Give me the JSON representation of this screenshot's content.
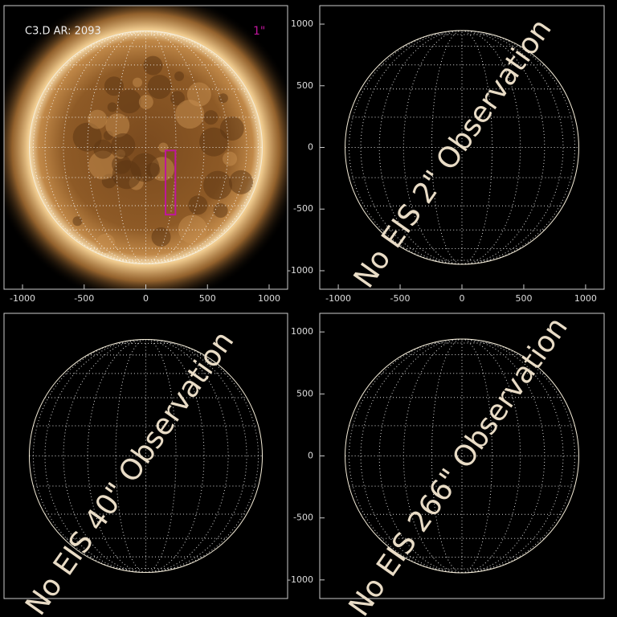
{
  "chart_data": [
    {
      "type": "image",
      "title": "C3.D AR: 2093",
      "slit_label": "1\"",
      "slit": {
        "x": [
          160,
          240
        ],
        "y": [
          -545,
          -25
        ],
        "color": "#c0169c"
      },
      "xlim": [
        -1150,
        1150
      ],
      "ylim": [
        -1150,
        1150
      ],
      "xticks": [
        -1000,
        -500,
        0,
        500,
        1000
      ]
    },
    {
      "type": "empty",
      "annotation": "No EIS 2\" Observation",
      "xlim": [
        -1150,
        1150
      ],
      "ylim": [
        -1150,
        1150
      ],
      "xticks": [
        -1000,
        -500,
        0,
        500,
        1000
      ],
      "yticks": [
        -1000,
        -500,
        0,
        500,
        1000
      ]
    },
    {
      "type": "empty",
      "annotation": "No EIS 40\" Observation",
      "xlim": [
        -1150,
        1150
      ],
      "ylim": [
        -1150,
        1150
      ]
    },
    {
      "type": "empty",
      "annotation": "No EIS 266\" Observation",
      "xlim": [
        -1150,
        1150
      ],
      "ylim": [
        -1150,
        1150
      ],
      "yticks": [
        -1000,
        -500,
        0,
        500,
        1000
      ]
    }
  ]
}
